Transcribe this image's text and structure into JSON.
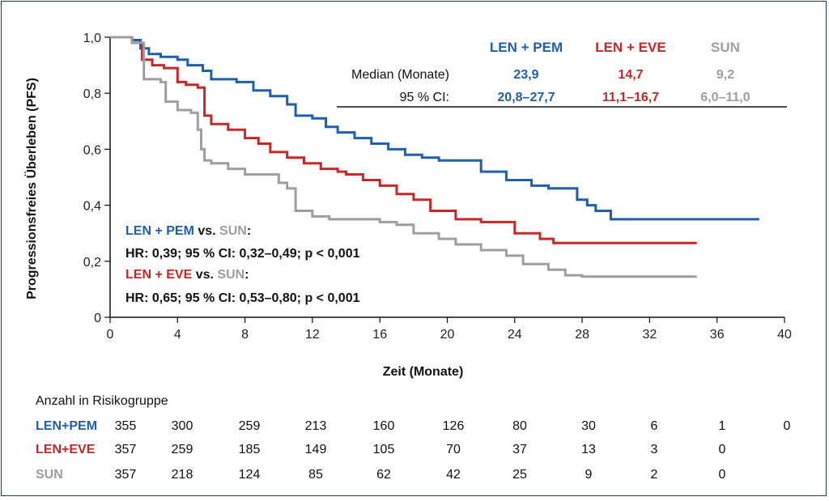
{
  "chart_data": {
    "type": "line",
    "xlabel": "Zeit (Monate)",
    "ylabel": "Progressionsfreies Überleben (PFS)",
    "xlim": [
      0,
      40
    ],
    "ylim": [
      0,
      1.0
    ],
    "xticks": [
      "0",
      "4",
      "8",
      "12",
      "16",
      "20",
      "24",
      "28",
      "32",
      "36",
      "40"
    ],
    "yticks": [
      "0",
      "0,2",
      "0,4",
      "0,6",
      "0,8",
      "1,0"
    ],
    "series": [
      {
        "name": "LEN + PEM",
        "color": "#1f5fae",
        "points": [
          [
            0,
            1.0
          ],
          [
            0.8,
            1.0
          ],
          [
            1.3,
            0.99
          ],
          [
            1.8,
            0.96
          ],
          [
            2.3,
            0.94
          ],
          [
            3,
            0.93
          ],
          [
            4,
            0.92
          ],
          [
            4.6,
            0.9
          ],
          [
            5.5,
            0.88
          ],
          [
            6,
            0.85
          ],
          [
            7.5,
            0.84
          ],
          [
            8.5,
            0.81
          ],
          [
            9.5,
            0.79
          ],
          [
            10.5,
            0.76
          ],
          [
            11,
            0.72
          ],
          [
            12,
            0.71
          ],
          [
            12.8,
            0.68
          ],
          [
            13.5,
            0.66
          ],
          [
            14.5,
            0.64
          ],
          [
            15.5,
            0.62
          ],
          [
            16.5,
            0.6
          ],
          [
            17.5,
            0.58
          ],
          [
            18.5,
            0.57
          ],
          [
            19.5,
            0.56
          ],
          [
            21,
            0.56
          ],
          [
            22,
            0.52
          ],
          [
            23.5,
            0.49
          ],
          [
            25,
            0.47
          ],
          [
            26,
            0.46
          ],
          [
            27.5,
            0.46
          ],
          [
            27.7,
            0.42
          ],
          [
            28.3,
            0.4
          ],
          [
            28.8,
            0.38
          ],
          [
            29.7,
            0.35
          ],
          [
            34,
            0.35
          ],
          [
            38.5,
            0.35
          ]
        ]
      },
      {
        "name": "LEN + EVE",
        "color": "#c62828",
        "points": [
          [
            0,
            1.0
          ],
          [
            0.8,
            1.0
          ],
          [
            1.3,
            0.98
          ],
          [
            1.9,
            0.92
          ],
          [
            2.5,
            0.9
          ],
          [
            3.2,
            0.89
          ],
          [
            4,
            0.84
          ],
          [
            4.5,
            0.83
          ],
          [
            5.2,
            0.82
          ],
          [
            5.6,
            0.72
          ],
          [
            6,
            0.69
          ],
          [
            7,
            0.67
          ],
          [
            8,
            0.64
          ],
          [
            8.8,
            0.62
          ],
          [
            9.5,
            0.59
          ],
          [
            10.5,
            0.57
          ],
          [
            11.5,
            0.55
          ],
          [
            12.5,
            0.53
          ],
          [
            13.5,
            0.52
          ],
          [
            14,
            0.51
          ],
          [
            15,
            0.49
          ],
          [
            16,
            0.47
          ],
          [
            17,
            0.44
          ],
          [
            18,
            0.42
          ],
          [
            19,
            0.38
          ],
          [
            20.5,
            0.35
          ],
          [
            22,
            0.34
          ],
          [
            24,
            0.3
          ],
          [
            25.5,
            0.28
          ],
          [
            26.3,
            0.265
          ],
          [
            30,
            0.265
          ],
          [
            34.8,
            0.265
          ]
        ]
      },
      {
        "name": "SUN",
        "color": "#9e9e9e",
        "points": [
          [
            0,
            1.0
          ],
          [
            0.8,
            1.0
          ],
          [
            1.3,
            0.98
          ],
          [
            2,
            0.85
          ],
          [
            3,
            0.84
          ],
          [
            3.3,
            0.77
          ],
          [
            4,
            0.74
          ],
          [
            4.8,
            0.73
          ],
          [
            5.2,
            0.67
          ],
          [
            5.4,
            0.6
          ],
          [
            5.6,
            0.56
          ],
          [
            6,
            0.55
          ],
          [
            7,
            0.53
          ],
          [
            8,
            0.51
          ],
          [
            10,
            0.48
          ],
          [
            10.5,
            0.46
          ],
          [
            11,
            0.38
          ],
          [
            12,
            0.36
          ],
          [
            13,
            0.35
          ],
          [
            16,
            0.34
          ],
          [
            17,
            0.33
          ],
          [
            18,
            0.3
          ],
          [
            19.5,
            0.28
          ],
          [
            20.5,
            0.26
          ],
          [
            22,
            0.24
          ],
          [
            23.5,
            0.22
          ],
          [
            24.5,
            0.19
          ],
          [
            26,
            0.17
          ],
          [
            27,
            0.15
          ],
          [
            28,
            0.145
          ],
          [
            34.8,
            0.145
          ]
        ]
      }
    ],
    "legend_table": {
      "headers": [
        "LEN + PEM",
        "LEN + EVE",
        "SUN"
      ],
      "rows": [
        {
          "label": "Median (Monate)",
          "values": [
            "23,9",
            "14,7",
            "9,2"
          ]
        },
        {
          "label": "95 % CI:",
          "values": [
            "20,8–27,7",
            "11,1–16,7",
            "6,0–11,0"
          ]
        }
      ]
    },
    "annotations": [
      {
        "group1": "LEN + PEM",
        "vs": "vs.",
        "group2": "SUN",
        "colon": ":",
        "stats": "HR: 0,39; 95 % CI: 0,32–0,49; p < 0,001"
      },
      {
        "group1": "LEN + EVE",
        "vs": "vs.",
        "group2": "SUN",
        "colon": ":",
        "stats": "HR: 0,65; 95 % CI: 0,53–0,80; p < 0,001"
      }
    ],
    "risk_table": {
      "title": "Anzahl in Risikogruppe",
      "rows": [
        {
          "name": "LEN+PEM",
          "color": "#1f5fae",
          "values": [
            "355",
            "300",
            "259",
            "213",
            "160",
            "126",
            "80",
            "30",
            "6",
            "1",
            "0"
          ]
        },
        {
          "name": "LEN+EVE",
          "color": "#c62828",
          "values": [
            "357",
            "259",
            "185",
            "149",
            "105",
            "70",
            "37",
            "13",
            "3",
            "0"
          ]
        },
        {
          "name": "SUN",
          "color": "#9e9e9e",
          "values": [
            "357",
            "218",
            "124",
            "85",
            "62",
            "42",
            "25",
            "9",
            "2",
            "0"
          ]
        }
      ]
    }
  }
}
